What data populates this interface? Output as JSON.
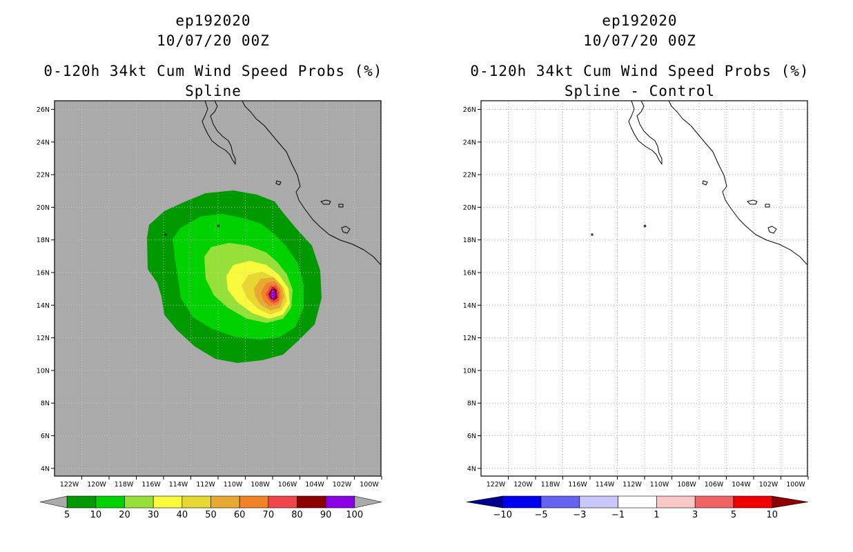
{
  "left_panel": {
    "storm_id": "ep192020",
    "datetime": "10/07/20 00Z",
    "product": "0-120h 34kt Cum Wind Speed Probs (%)",
    "subtitle": "Spline",
    "colorbar": {
      "labels": [
        "5",
        "10",
        "20",
        "30",
        "40",
        "50",
        "60",
        "70",
        "80",
        "90",
        "100"
      ],
      "colors": [
        "#aaaaaa",
        "#009a00",
        "#00d200",
        "#96e03a",
        "#fafa3c",
        "#e6d732",
        "#e6aa32",
        "#f08228",
        "#f0464b",
        "#8c0000",
        "#8c00e6",
        "#aaaaaa"
      ]
    }
  },
  "right_panel": {
    "storm_id": "ep192020",
    "datetime": "10/07/20 00Z",
    "product": "0-120h 34kt Cum Wind Speed Probs (%)",
    "subtitle": "Spline - Control",
    "colorbar": {
      "labels": [
        "-10",
        "-5",
        "-3",
        "-1",
        "1",
        "3",
        "5",
        "10"
      ],
      "colors": [
        "#00008c",
        "#0000f0",
        "#6464f0",
        "#c8c8fa",
        "#ffffff",
        "#fac8c8",
        "#f06464",
        "#f00000",
        "#8c0000"
      ]
    }
  },
  "map": {
    "lat_labels": [
      "26N",
      "24N",
      "22N",
      "20N",
      "18N",
      "16N",
      "14N",
      "12N",
      "10N",
      "8N",
      "6N",
      "4N"
    ],
    "lon_labels": [
      "122W",
      "120W",
      "118W",
      "116W",
      "114W",
      "112W",
      "110W",
      "108W",
      "106W",
      "104W",
      "102W",
      "100W"
    ],
    "land_color": "#aaaaaa",
    "ocean_color": "#aaaaaa",
    "prob_field_colors": [
      "#009a00",
      "#00d200",
      "#96e03a",
      "#fafa3c",
      "#e6d732",
      "#e6aa32",
      "#f08228",
      "#f0464b",
      "#8c0000",
      "#8c00e6"
    ]
  }
}
